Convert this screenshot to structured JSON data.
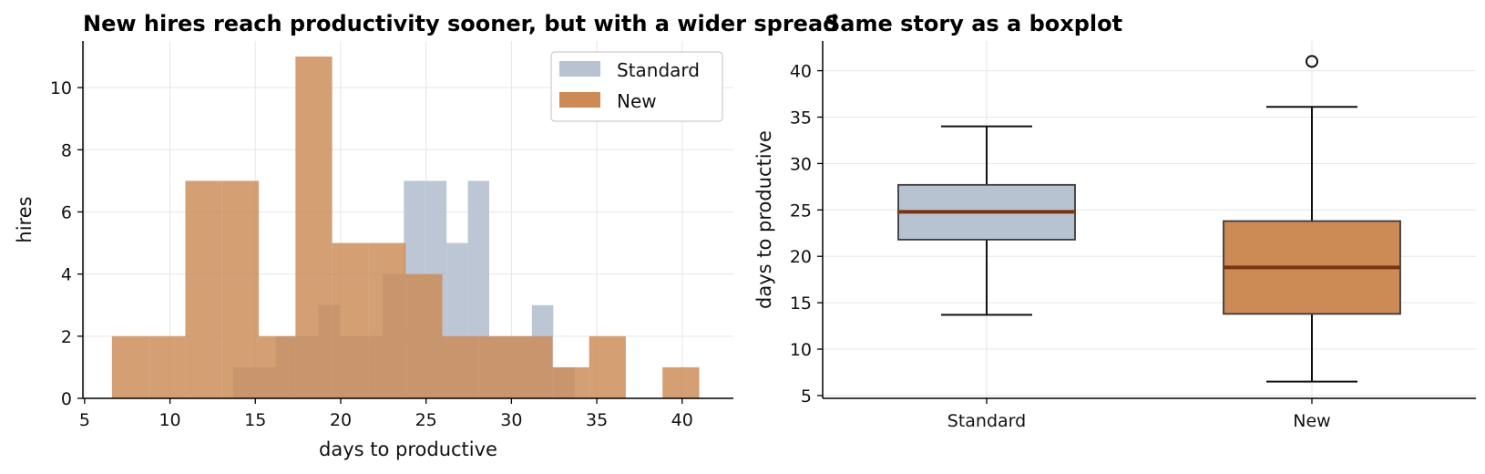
{
  "colors": {
    "standard": "#b8c3d2",
    "new": "#cc8a55",
    "median": "#7a3410",
    "box_edge": "#3a3a3a"
  },
  "chart_data": [
    {
      "type": "histogram",
      "title": "New hires reach productivity sooner, but with a wider spread",
      "xlabel": "days to productive",
      "ylabel": "hires",
      "xlim": [
        4.9,
        43
      ],
      "ylim": [
        0,
        11.5
      ],
      "xticks": [
        5,
        10,
        15,
        20,
        25,
        30,
        35,
        40
      ],
      "yticks": [
        0,
        2,
        4,
        6,
        8,
        10
      ],
      "grid": true,
      "legend": "top-right",
      "series": [
        {
          "name": "Standard",
          "color": "#b8c3d2",
          "bins": [
            {
              "x0": 13.7,
              "x1": 14.95,
              "count": 1
            },
            {
              "x0": 14.95,
              "x1": 16.2,
              "count": 1
            },
            {
              "x0": 16.2,
              "x1": 17.45,
              "count": 2
            },
            {
              "x0": 17.45,
              "x1": 18.7,
              "count": 2
            },
            {
              "x0": 18.7,
              "x1": 19.95,
              "count": 3
            },
            {
              "x0": 19.95,
              "x1": 21.2,
              "count": 2
            },
            {
              "x0": 21.2,
              "x1": 22.45,
              "count": 2
            },
            {
              "x0": 22.45,
              "x1": 23.7,
              "count": 4
            },
            {
              "x0": 23.7,
              "x1": 24.95,
              "count": 7
            },
            {
              "x0": 24.95,
              "x1": 26.2,
              "count": 7
            },
            {
              "x0": 26.2,
              "x1": 27.45,
              "count": 5
            },
            {
              "x0": 27.45,
              "x1": 28.7,
              "count": 7
            },
            {
              "x0": 28.7,
              "x1": 29.95,
              "count": 2
            },
            {
              "x0": 29.95,
              "x1": 31.2,
              "count": 2
            },
            {
              "x0": 31.2,
              "x1": 32.45,
              "count": 3
            },
            {
              "x0": 32.45,
              "x1": 33.7,
              "count": 1
            }
          ]
        },
        {
          "name": "New",
          "color": "#cc8a55",
          "bins": [
            {
              "x0": 6.6,
              "x1": 8.75,
              "count": 2
            },
            {
              "x0": 8.75,
              "x1": 10.9,
              "count": 2
            },
            {
              "x0": 10.9,
              "x1": 13.05,
              "count": 7
            },
            {
              "x0": 13.05,
              "x1": 15.2,
              "count": 7
            },
            {
              "x0": 15.2,
              "x1": 17.35,
              "count": 2
            },
            {
              "x0": 17.35,
              "x1": 19.5,
              "count": 11
            },
            {
              "x0": 19.5,
              "x1": 21.65,
              "count": 5
            },
            {
              "x0": 21.65,
              "x1": 23.8,
              "count": 5
            },
            {
              "x0": 23.8,
              "x1": 25.95,
              "count": 4
            },
            {
              "x0": 25.95,
              "x1": 28.1,
              "count": 2
            },
            {
              "x0": 28.1,
              "x1": 30.25,
              "count": 2
            },
            {
              "x0": 30.25,
              "x1": 32.4,
              "count": 2
            },
            {
              "x0": 32.4,
              "x1": 34.55,
              "count": 1
            },
            {
              "x0": 34.55,
              "x1": 36.7,
              "count": 2
            },
            {
              "x0": 36.7,
              "x1": 38.85,
              "count": 0
            },
            {
              "x0": 38.85,
              "x1": 41.0,
              "count": 1
            }
          ]
        }
      ]
    },
    {
      "type": "boxplot",
      "title": "Same story as a boxplot",
      "xlabel": "",
      "ylabel": "days to productive",
      "ylim": [
        4.7,
        43.2
      ],
      "yticks": [
        5,
        10,
        15,
        20,
        25,
        30,
        35,
        40
      ],
      "grid": true,
      "categories": [
        "Standard",
        "New"
      ],
      "boxes": [
        {
          "name": "Standard",
          "color": "#b8c3d2",
          "whisker_low": 13.7,
          "q1": 21.8,
          "median": 24.8,
          "q3": 27.7,
          "whisker_high": 34.0,
          "outliers": []
        },
        {
          "name": "New",
          "color": "#cc8a55",
          "whisker_low": 6.5,
          "q1": 13.8,
          "median": 18.8,
          "q3": 23.8,
          "whisker_high": 36.1,
          "outliers": [
            41.0
          ]
        }
      ]
    }
  ]
}
